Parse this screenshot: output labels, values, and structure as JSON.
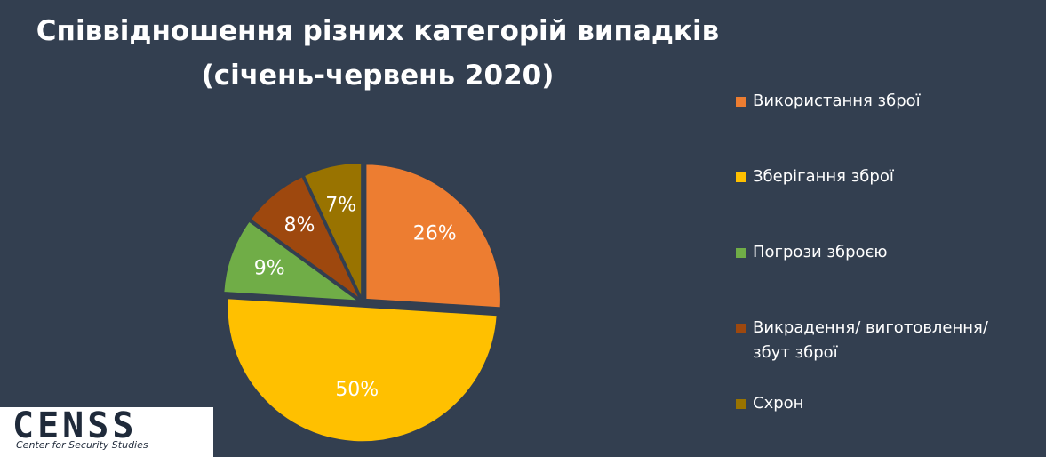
{
  "chart_data": {
    "type": "pie",
    "title": "Співвідношення різних категорій випадків",
    "subtitle": "(січень-червень 2020)",
    "categories": [
      "Використання зброї",
      "Зберігання зброї",
      "Погрози зброєю",
      "Викрадення/ виготовлення/ збут зброї",
      "Схрон"
    ],
    "values": [
      26,
      50,
      9,
      8,
      7
    ],
    "value_labels": [
      "26%",
      "50%",
      "9%",
      "8%",
      "7%"
    ],
    "colors": [
      "#ED7D31",
      "#FFC000",
      "#70AD47",
      "#9E480E",
      "#997300"
    ],
    "legend": "right"
  },
  "logo": {
    "name": "CENSS",
    "tagline": "Center for Security Studies"
  }
}
